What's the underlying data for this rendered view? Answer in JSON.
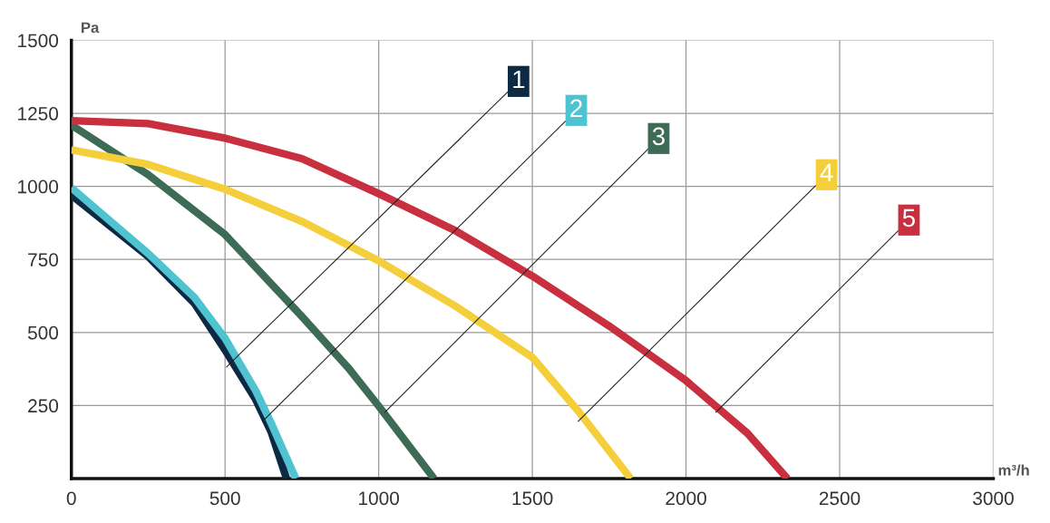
{
  "chart_data": {
    "type": "line",
    "xlabel": "m³/h",
    "ylabel": "Pa",
    "xlim": [
      0,
      3000
    ],
    "ylim": [
      0,
      1500
    ],
    "xticks": [
      0,
      500,
      1000,
      1500,
      2000,
      2500,
      3000
    ],
    "yticks": [
      250,
      500,
      750,
      1000,
      1250,
      1500
    ],
    "grid": true,
    "legend": false,
    "marker": "none",
    "line_style": "solid",
    "series": [
      {
        "color": "#0d2a45",
        "x": [
          0,
          250,
          400,
          500,
          600,
          650,
          700
        ],
        "values": [
          970,
          760,
          600,
          440,
          270,
          160,
          0
        ]
      },
      {
        "color": "#4fc3d0",
        "x": [
          0,
          250,
          400,
          500,
          600,
          650,
          730
        ],
        "values": [
          995,
          770,
          620,
          480,
          300,
          190,
          0
        ]
      },
      {
        "color": "#3d6b55",
        "x": [
          0,
          250,
          500,
          750,
          900,
          1000,
          1100,
          1180
        ],
        "values": [
          1210,
          1040,
          835,
          555,
          380,
          248,
          110,
          0
        ]
      },
      {
        "color": "#f5cf3b",
        "x": [
          0,
          250,
          500,
          750,
          1000,
          1250,
          1500,
          1650,
          1820
        ],
        "values": [
          1125,
          1075,
          990,
          880,
          745,
          590,
          415,
          230,
          0
        ]
      },
      {
        "color": "#c8303f",
        "x": [
          0,
          250,
          500,
          750,
          1000,
          1250,
          1500,
          1750,
          2000,
          2200,
          2330
        ],
        "values": [
          1225,
          1215,
          1165,
          1095,
          975,
          848,
          693,
          522,
          335,
          155,
          0
        ]
      }
    ],
    "annotations": [
      {
        "text": "1",
        "x": 505,
        "y": 382
      },
      {
        "text": "2",
        "x": 622,
        "y": 196
      },
      {
        "text": "3",
        "x": 1020,
        "y": 227
      },
      {
        "text": "4",
        "x": 1649,
        "y": 196
      },
      {
        "text": "5",
        "x": 2097,
        "y": 227
      }
    ]
  }
}
